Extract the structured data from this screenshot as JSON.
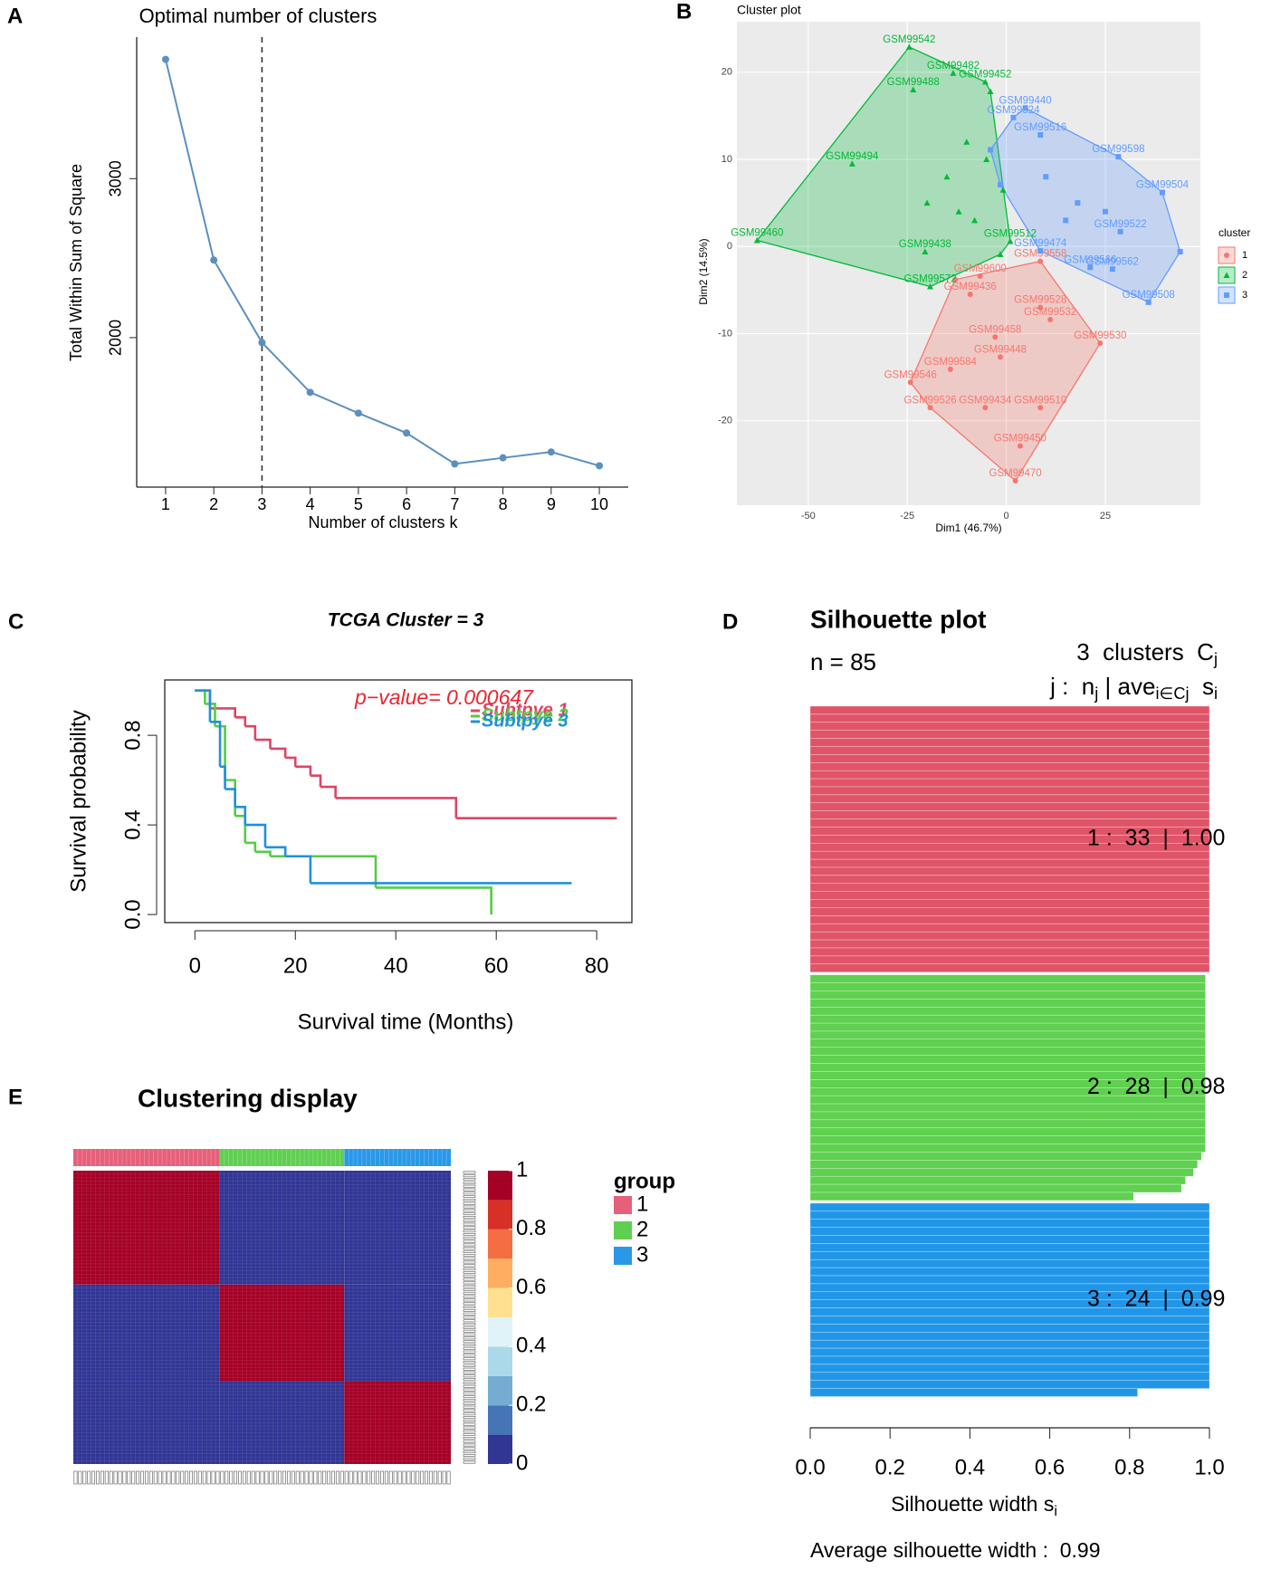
{
  "panel_labels": [
    "A",
    "B",
    "C",
    "D",
    "E"
  ],
  "chart_data": [
    {
      "type": "line",
      "title": "Optimal number of clusters",
      "x_label": "Number of clusters k",
      "y_label": "Total Within Sum of Square",
      "x": [
        1,
        2,
        3,
        4,
        5,
        6,
        7,
        8,
        9,
        10
      ],
      "values": [
        3750,
        2488,
        1969,
        1656,
        1525,
        1400,
        1206,
        1244,
        1281,
        1194
      ],
      "color": "#5b8fbf",
      "xlim": [
        0.4,
        10.6
      ],
      "ylim": [
        1060,
        3890
      ],
      "xticks": [
        1,
        2,
        3,
        4,
        5,
        6,
        7,
        8,
        9,
        10
      ],
      "yticks": [
        2000,
        3000
      ],
      "vline": 3
    },
    {
      "type": "scatter",
      "title": "Cluster plot",
      "x_label": "Dim1 (46.7%)",
      "y_label": "Dim2 (14.5%)",
      "legend_title": "cluster",
      "xlim": [
        -68,
        49
      ],
      "ylim": [
        -29.7,
        25.8
      ],
      "xticks": [
        -50,
        -25,
        0,
        25
      ],
      "yticks": [
        -20,
        -10,
        0,
        10,
        20
      ],
      "grid": true,
      "series": [
        {
          "name": "1",
          "color": "#F8766D",
          "shape": "circle",
          "x": [
            8.6,
            -6.6,
            -9.1,
            -12.9,
            8.6,
            11.1,
            23.7,
            -2.8,
            -1.5,
            -14.1,
            -24.2,
            -19.2,
            -5.3,
            8.6,
            3.5,
            2.3
          ],
          "values": [
            -1.7,
            -3.4,
            -5.5,
            -3.8,
            -7.0,
            -8.4,
            -11.1,
            -10.4,
            -12.7,
            -14.1,
            -15.6,
            -18.5,
            -18.5,
            -18.5,
            -22.9,
            -26.9
          ],
          "labels": [
            "GSM99558",
            "GSM99600",
            "GSM99436",
            null,
            "GSM99528",
            "GSM99532",
            "GSM99530",
            "GSM99458",
            "GSM99448",
            "GSM99584",
            "GSM99546",
            "GSM99526",
            "GSM99434",
            "GSM99510",
            "GSM99450",
            "GSM99470"
          ]
        },
        {
          "name": "2",
          "color": "#00BA38",
          "shape": "triangle",
          "x": [
            -24.5,
            -13.4,
            -23.5,
            -5.3,
            -4.0,
            -38.9,
            -62.9,
            -19.2,
            -1.5,
            -0.8,
            -20.5,
            1.0,
            -10,
            -15,
            -20,
            -8,
            -12,
            -5
          ],
          "values": [
            22.9,
            19.9,
            18.0,
            18.9,
            17.8,
            9.5,
            0.7,
            -4.6,
            -0.9,
            6.5,
            -0.6,
            0.6,
            12,
            8,
            5,
            3,
            4,
            10
          ],
          "labels": [
            "GSM99542",
            "GSM99482",
            "GSM99488",
            "GSM99452",
            null,
            "GSM99494",
            "GSM99460",
            "GSM99572",
            null,
            null,
            "GSM99438",
            "GSM99512",
            null,
            null,
            null,
            null,
            null,
            null
          ]
        },
        {
          "name": "3",
          "color": "#619CFF",
          "shape": "square",
          "x": [
            4.8,
            1.8,
            8.6,
            28.3,
            39.4,
            43.9,
            35.9,
            26.8,
            21.2,
            28.8,
            8.6,
            -4.0,
            -1.5,
            10,
            18,
            25,
            15
          ],
          "values": [
            15.9,
            14.8,
            12.8,
            10.3,
            6.2,
            -0.6,
            -6.4,
            -2.6,
            -2.4,
            1.7,
            -0.5,
            11.1,
            7.1,
            8,
            5,
            4,
            3
          ],
          "labels": [
            "GSM99440",
            "GSM99524",
            "GSM99516",
            "GSM99598",
            "GSM99504",
            null,
            "GSM99508",
            "GSM99562",
            "GSM99566",
            "GSM99522",
            "GSM99474",
            null,
            null,
            null,
            null,
            null,
            null
          ]
        }
      ]
    },
    {
      "type": "step",
      "title": "TCGA Cluster = 3",
      "x_label": "Survival time (Months)",
      "y_label": "Survival probability",
      "annotation": "p−value= 0.000647",
      "xlim": [
        -6,
        87
      ],
      "ylim": [
        -0.036,
        1.047
      ],
      "xticks": [
        0,
        20,
        40,
        60,
        80
      ],
      "yticks": [
        {
          "value": 0,
          "label": "0.0"
        },
        0.4,
        0.8
      ],
      "series": [
        {
          "name": "Subtpye 1",
          "color": "#dd4466",
          "x": [
            0,
            3,
            8,
            10,
            12,
            15,
            18,
            20,
            23,
            25,
            28,
            52,
            84
          ],
          "values": [
            1,
            0.92,
            0.88,
            0.84,
            0.78,
            0.74,
            0.7,
            0.66,
            0.62,
            0.57,
            0.52,
            0.43,
            0.43
          ]
        },
        {
          "name": "Subtpye 2",
          "color": "#55cc44",
          "x": [
            0,
            2,
            4,
            6,
            8,
            10,
            12,
            15,
            36,
            59
          ],
          "values": [
            1,
            0.94,
            0.84,
            0.6,
            0.44,
            0.32,
            0.28,
            0.26,
            0.12,
            0
          ]
        },
        {
          "name": "Subtpye 3",
          "color": "#2090dd",
          "x": [
            0,
            3,
            5,
            6,
            8,
            10,
            14,
            18,
            23,
            75
          ],
          "values": [
            1,
            0.86,
            0.66,
            0.56,
            0.48,
            0.4,
            0.3,
            0.26,
            0.14,
            0.14
          ]
        }
      ]
    },
    {
      "type": "silhouette",
      "title": "Silhouette plot",
      "n_label": "n = 85",
      "header_line1": [
        "3  clusters  C",
        "j"
      ],
      "header_line2": [
        "j :  n",
        "j",
        " | ave",
        "i∈Cj",
        "  s",
        "i"
      ],
      "x_label": [
        "Silhouette width s",
        "i"
      ],
      "footer": "Average silhouette width :  0.99",
      "xlim": [
        0,
        1
      ],
      "xticks": [
        {
          "value": 0,
          "label": "0.0"
        },
        0.2,
        0.4,
        0.6,
        0.8,
        {
          "value": 1,
          "label": "1.0"
        }
      ],
      "cluster_labels": [
        "1 :  33  |  1.00",
        "2 :  28  |  0.98",
        "3 :  24  |  0.99"
      ],
      "series": [
        {
          "name": "1",
          "color": "#e05468",
          "values": [
            1,
            1,
            1,
            1,
            1,
            1,
            1,
            1,
            1,
            1,
            1,
            1,
            1,
            1,
            1,
            1,
            1,
            1,
            1,
            1,
            1,
            1,
            1,
            1,
            1,
            1,
            1,
            1,
            1,
            1,
            1,
            1,
            1
          ]
        },
        {
          "name": "2",
          "color": "#5fd04f",
          "values": [
            0.99,
            0.99,
            0.99,
            0.99,
            0.99,
            0.99,
            0.99,
            0.99,
            0.99,
            0.99,
            0.99,
            0.99,
            0.99,
            0.99,
            0.99,
            0.99,
            0.99,
            0.99,
            0.99,
            0.99,
            0.99,
            0.99,
            0.98,
            0.97,
            0.96,
            0.94,
            0.93,
            0.81
          ]
        },
        {
          "name": "3",
          "color": "#2196e8",
          "values": [
            1,
            1,
            1,
            1,
            1,
            1,
            1,
            1,
            1,
            1,
            1,
            1,
            1,
            1,
            1,
            1,
            1,
            1,
            1,
            1,
            1,
            1,
            1,
            0.82
          ]
        }
      ]
    },
    {
      "type": "heatmap",
      "title": "Clustering display",
      "legend_title": "group",
      "groups": [
        {
          "name": "1",
          "color": "#e6607a"
        },
        {
          "name": "2",
          "color": "#5fcf52"
        },
        {
          "name": "3",
          "color": "#2a98e6"
        }
      ],
      "matrix": [
        [
          1,
          0,
          0
        ],
        [
          0,
          1,
          0
        ],
        [
          0,
          0,
          1
        ]
      ],
      "colors": [
        "#313695",
        "#4575b4",
        "#74add1",
        "#abd9e9",
        "#e0f3f8",
        "#fee090",
        "#fdae61",
        "#f46d43",
        "#d73027",
        "#a50026"
      ],
      "colorbar_range": [
        0,
        1
      ],
      "colorbar_ticks": [
        0,
        0.2,
        0.4,
        0.6,
        0.8,
        1
      ]
    }
  ]
}
